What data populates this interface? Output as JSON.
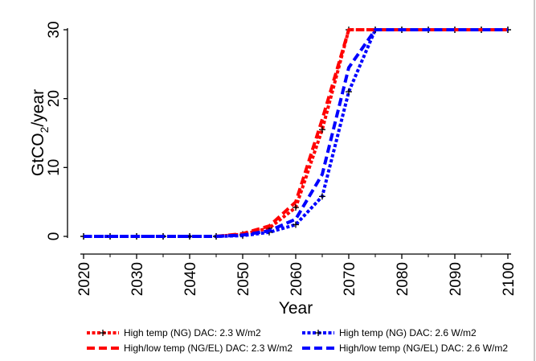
{
  "chart_data": {
    "type": "line",
    "title": "",
    "xlabel": "Year",
    "ylabel": "GtCO₂/year",
    "ylabel_parts": {
      "before": "GtCO",
      "sub": "2",
      "after": "/year"
    },
    "xlim": [
      2020,
      2100
    ],
    "ylim": [
      0,
      30
    ],
    "x_ticks": [
      "2020",
      "2030",
      "2040",
      "2050",
      "2060",
      "2070",
      "2080",
      "2090",
      "2100"
    ],
    "x_minor_ticks": [
      2025,
      2035,
      2045,
      2055,
      2065,
      2075,
      2085,
      2095
    ],
    "y_ticks": [
      "0",
      "10",
      "20",
      "30"
    ],
    "grid": false,
    "legend_position": "bottom",
    "x": [
      2020,
      2025,
      2030,
      2035,
      2040,
      2045,
      2050,
      2055,
      2060,
      2065,
      2070,
      2075,
      2080,
      2085,
      2090,
      2095,
      2100
    ],
    "series": [
      {
        "name": "High temp (NG) DAC: 2.3 W/m2",
        "color": "#ff0000",
        "style": "dot-cross",
        "values": [
          0,
          0,
          0,
          0,
          0,
          0,
          0.3,
          1.2,
          4.2,
          15.5,
          30,
          30,
          30,
          30,
          30,
          30,
          30
        ]
      },
      {
        "name": "High temp (NG) DAC: 2.6 W/m2",
        "color": "#0000ff",
        "style": "dot-cross",
        "values": [
          0,
          0,
          0,
          0,
          0,
          0,
          0.1,
          0.6,
          1.7,
          5.8,
          21,
          30,
          30,
          30,
          30,
          30,
          30
        ]
      },
      {
        "name": "High/low temp (NG/EL) DAC: 2.3 W/m2",
        "color": "#ff0000",
        "style": "dash",
        "values": [
          0,
          0,
          0,
          0,
          0,
          0,
          0.4,
          1.5,
          5.0,
          17.0,
          30,
          30,
          30,
          30,
          30,
          30,
          30
        ]
      },
      {
        "name": "High/low temp (NG/EL) DAC: 2.6 W/m2",
        "color": "#0000ff",
        "style": "dash",
        "values": [
          0,
          0,
          0,
          0,
          0,
          0,
          0.2,
          0.8,
          2.5,
          9.0,
          24.5,
          30,
          30,
          30,
          30,
          30,
          30
        ]
      }
    ]
  }
}
